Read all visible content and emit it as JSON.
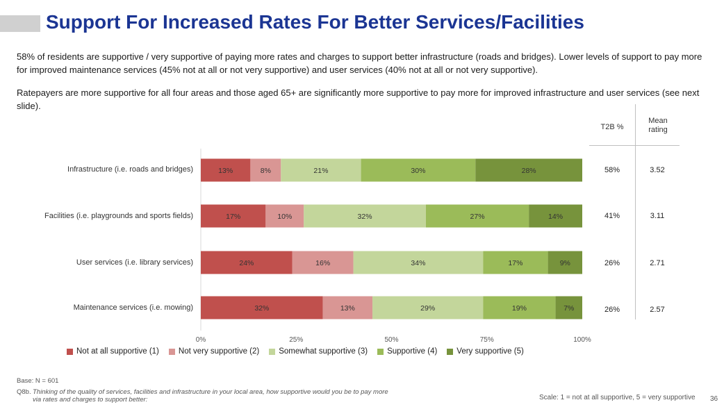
{
  "title": "Support For Increased Rates For Better Services/Facilities",
  "paragraphs": [
    "58% of residents are supportive / very supportive of paying more rates and charges to support better infrastructure (roads and bridges). Lower levels of support to pay more for improved maintenance services (45% not at all or not very supportive) and user services (40% not at all or not very supportive).",
    "Ratepayers are more supportive for all four areas and those aged 65+ are significantly more supportive to pay more for improved infrastructure and user services (see next slide)."
  ],
  "table": {
    "t2b_header": "T2B %",
    "mean_header": "Mean rating",
    "rows": [
      {
        "t2b": "58%",
        "mean": "3.52"
      },
      {
        "t2b": "41%",
        "mean": "3.11"
      },
      {
        "t2b": "26%",
        "mean": "2.71"
      },
      {
        "t2b": "26%",
        "mean": "2.57"
      }
    ]
  },
  "chart_data": {
    "type": "bar",
    "orientation": "horizontal",
    "stacked": true,
    "categories": [
      "Infrastructure (i.e. roads and bridges)",
      "Facilities (i.e. playgrounds and sports fields)",
      "User services (i.e. library services)",
      "Maintenance services (i.e. mowing)"
    ],
    "series": [
      {
        "name": "Not at all supportive (1)",
        "color": "#c0504d",
        "values": [
          13,
          17,
          24,
          32
        ]
      },
      {
        "name": "Not very supportive (2)",
        "color": "#d99694",
        "values": [
          8,
          10,
          16,
          13
        ]
      },
      {
        "name": "Somewhat supportive (3)",
        "color": "#c3d69b",
        "values": [
          21,
          32,
          34,
          29
        ]
      },
      {
        "name": "Supportive (4)",
        "color": "#9bbb59",
        "values": [
          30,
          27,
          17,
          19
        ]
      },
      {
        "name": "Very supportive (5)",
        "color": "#77933c",
        "values": [
          28,
          14,
          9,
          7
        ]
      }
    ],
    "value_suffix": "%",
    "xlim": [
      0,
      100
    ],
    "xticks": [
      "0%",
      "25%",
      "50%",
      "75%",
      "100%"
    ],
    "legend_position": "bottom"
  },
  "footer": {
    "base": "Base: N = 601",
    "q_code": "Q8b.",
    "question": "Thinking of the quality of services, facilities and infrastructure in your local area, how supportive would you be to pay more via rates and charges to support better:",
    "scale": "Scale: 1 = not at all supportive, 5 = very supportive",
    "page": "36"
  }
}
